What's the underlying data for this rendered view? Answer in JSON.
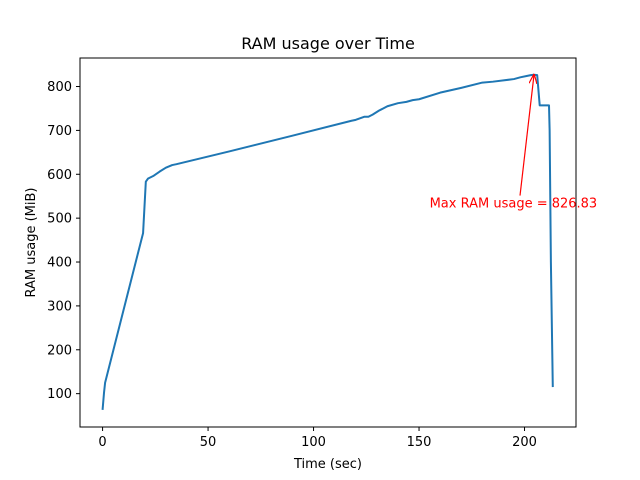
{
  "chart_data": {
    "type": "line",
    "title": "RAM usage over Time",
    "xlabel": "Time (sec)",
    "ylabel": "RAM usage (MiB)",
    "xlim": [
      -10.7,
      224.4
    ],
    "ylim": [
      24,
      865
    ],
    "xticks": [
      0,
      50,
      100,
      150,
      200
    ],
    "yticks": [
      100,
      200,
      300,
      400,
      500,
      600,
      700,
      800
    ],
    "grid": false,
    "line_color": "#1f77b4",
    "series": [
      {
        "x": [
          0,
          0.7,
          1.2,
          19.2,
          20.5,
          21.5,
          24,
          27,
          30,
          33,
          35,
          60,
          90,
          118,
          120,
          124,
          126,
          128,
          131,
          135,
          140,
          144,
          147,
          150,
          160,
          170,
          180,
          185,
          190,
          195,
          198,
          201,
          203,
          204.5,
          206,
          207.2,
          208.5,
          210,
          211.6,
          211.9,
          212.5,
          213.4
        ],
        "y": [
          63,
          103,
          125,
          466,
          583,
          590,
          596,
          606,
          615,
          621,
          623,
          652,
          688,
          722,
          724,
          731,
          731,
          736,
          745,
          755,
          762,
          765,
          769,
          771,
          786,
          797,
          809,
          811,
          814,
          817,
          821,
          824,
          826,
          826.8,
          826,
          757,
          757,
          757,
          757,
          700,
          400,
          115
        ]
      }
    ],
    "annotation": {
      "text": "Max RAM usage = 826.83",
      "color": "#ff0000",
      "point": [
        204.5,
        826.83
      ],
      "text_anchor_data": [
        155,
        524
      ]
    }
  }
}
